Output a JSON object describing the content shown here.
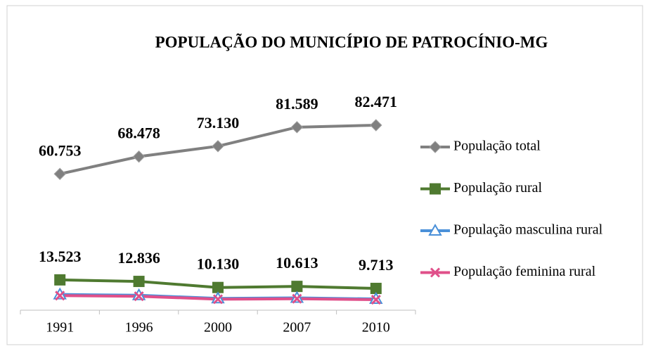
{
  "chart_data": {
    "type": "line",
    "title": "POPULAÇÃO DO MUNICÍPIO DE PATROCÍNIO-MG",
    "categories": [
      "1991",
      "1996",
      "2000",
      "2007",
      "2010"
    ],
    "ylim": [
      0,
      90000
    ],
    "legend": "right",
    "series": [
      {
        "name": "População total",
        "color": "#808080",
        "marker": "diamond",
        "values": [
          60753,
          68478,
          73130,
          81589,
          82471
        ],
        "value_labels": [
          "60.753",
          "68.478",
          "73.130",
          "81.589",
          "82.471"
        ]
      },
      {
        "name": "População rural",
        "color": "#4f7a30",
        "marker": "square",
        "values": [
          13523,
          12836,
          10130,
          10613,
          9713
        ],
        "value_labels": [
          "13.523",
          "12.836",
          "10.130",
          "10.613",
          "9.713"
        ]
      },
      {
        "name": "População masculina rural",
        "color": "#4a90d9",
        "marker": "triangle",
        "values": [
          7000,
          6650,
          5250,
          5500,
          5000
        ]
      },
      {
        "name": "População feminina rural",
        "color": "#e0508a",
        "marker": "x",
        "values": [
          6500,
          6200,
          4900,
          5100,
          4700
        ]
      }
    ]
  }
}
